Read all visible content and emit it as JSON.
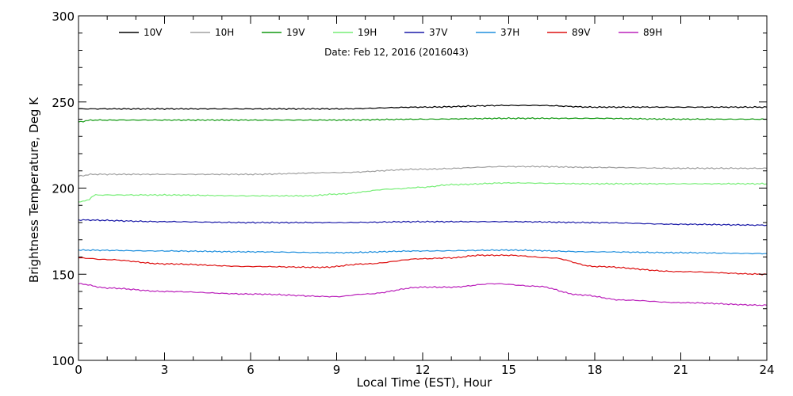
{
  "chart_data": {
    "type": "line",
    "title": "Date: Feb 12, 2016 (2016043)",
    "xlabel": "Local Time (EST), Hour",
    "ylabel": "Brightness Temperature, Deg K",
    "xlim": [
      0,
      24
    ],
    "ylim": [
      100,
      300
    ],
    "xticks": [
      0,
      3,
      6,
      9,
      12,
      15,
      18,
      21,
      24
    ],
    "yticks": [
      100,
      150,
      200,
      250,
      300
    ],
    "grid": false,
    "legend_position": "top",
    "series": [
      {
        "name": "10V",
        "color": "#000000",
        "x": [
          0,
          3,
          6,
          9,
          12,
          15,
          16,
          18,
          21,
          24
        ],
        "y": [
          246,
          246,
          246,
          246,
          247,
          248,
          248,
          247,
          247,
          247
        ]
      },
      {
        "name": "10H",
        "color": "#a0a0a0",
        "x": [
          0,
          0.5,
          3,
          6,
          9,
          12,
          15,
          16,
          18,
          21,
          24
        ],
        "y": [
          207,
          208,
          208,
          208,
          209,
          211,
          212.5,
          212.5,
          212,
          211.5,
          211.5
        ]
      },
      {
        "name": "19V",
        "color": "#119911",
        "x": [
          0,
          0.5,
          3,
          6,
          9,
          12,
          15,
          18,
          21,
          24
        ],
        "y": [
          238.5,
          239.5,
          239.5,
          239.5,
          239.5,
          240,
          240.5,
          240.5,
          240,
          240
        ]
      },
      {
        "name": "19H",
        "color": "#77ee77",
        "x": [
          0,
          0.3,
          0.6,
          3,
          6,
          8,
          9,
          11,
          12,
          13,
          15,
          18,
          21,
          24
        ],
        "y": [
          192,
          193,
          196,
          196,
          195.5,
          195.5,
          196.5,
          199.5,
          200.5,
          202,
          203,
          202.5,
          202.5,
          202.5
        ]
      },
      {
        "name": "37V",
        "color": "#1a1aa8",
        "x": [
          0,
          3,
          6,
          9,
          12,
          15,
          18,
          21,
          24
        ],
        "y": [
          181.5,
          180.5,
          180,
          180,
          180.5,
          180.5,
          180,
          179,
          178.5
        ]
      },
      {
        "name": "37H",
        "color": "#1f8fdd",
        "x": [
          0,
          3,
          6,
          9,
          12,
          15,
          18,
          21,
          24
        ],
        "y": [
          164,
          163.5,
          163,
          162.5,
          163.5,
          164,
          163,
          162.5,
          162
        ]
      },
      {
        "name": "89V",
        "color": "#dd1111",
        "x": [
          0,
          1,
          3,
          6,
          8.5,
          10,
          12,
          13,
          14,
          15,
          16.5,
          18,
          21,
          24
        ],
        "y": [
          159.5,
          158.5,
          156,
          154.5,
          154,
          156,
          159,
          159.5,
          161,
          161,
          159.5,
          154.5,
          151.5,
          150
        ]
      },
      {
        "name": "89H",
        "color": "#bb22bb",
        "x": [
          0,
          1,
          3,
          6,
          9,
          10,
          12,
          13,
          14.5,
          16,
          17.5,
          19,
          21,
          24
        ],
        "y": [
          144.5,
          142,
          140,
          138.5,
          137,
          138.5,
          142.5,
          142.5,
          144.5,
          143,
          138,
          135,
          133.5,
          132
        ]
      }
    ]
  }
}
